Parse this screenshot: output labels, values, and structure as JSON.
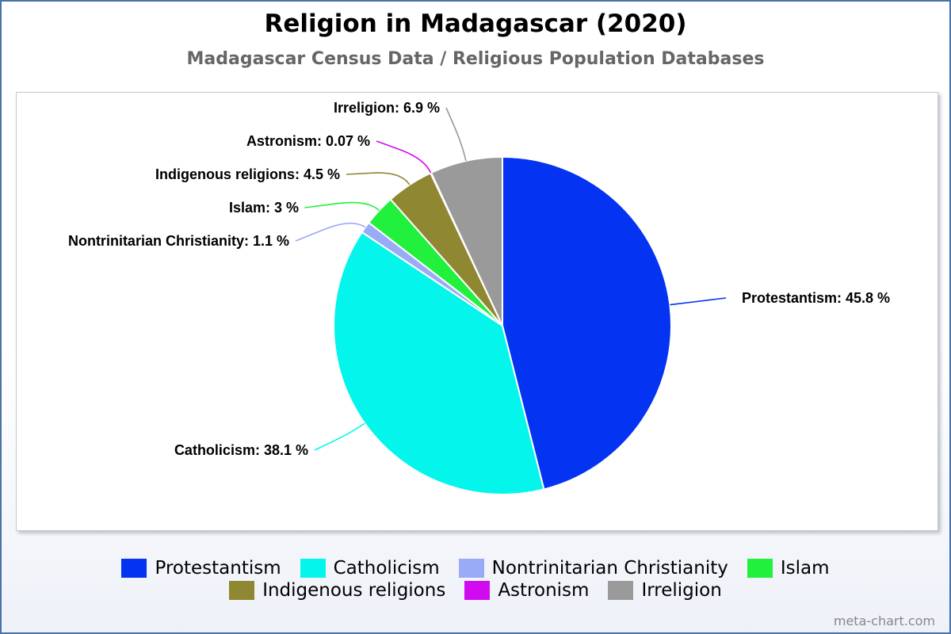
{
  "chart_data": {
    "type": "pie",
    "title": "Religion in Madagascar (2020)",
    "subtitle": "Madagascar Census Data / Religious Population Databases",
    "unit": "%",
    "legend_position": "bottom",
    "slices": [
      {
        "label": "Protestantism",
        "value": 45.8,
        "display": "45.8",
        "color": "#0433f2"
      },
      {
        "label": "Catholicism",
        "value": 38.1,
        "display": "38.1",
        "color": "#03f5ec"
      },
      {
        "label": "Nontrinitarian Christianity",
        "value": 1.1,
        "display": "1.1",
        "color": "#99aaf7"
      },
      {
        "label": "Islam",
        "value": 3,
        "display": "3",
        "color": "#21f03c"
      },
      {
        "label": "Indigenous religions",
        "value": 4.5,
        "display": "4.5",
        "color": "#8f8731"
      },
      {
        "label": "Astronism",
        "value": 0.07,
        "display": "0.07",
        "color": "#d10af0"
      },
      {
        "label": "Irreligion",
        "value": 6.9,
        "display": "6.9",
        "color": "#9a9a9a"
      }
    ]
  },
  "footer": "meta-chart.com"
}
